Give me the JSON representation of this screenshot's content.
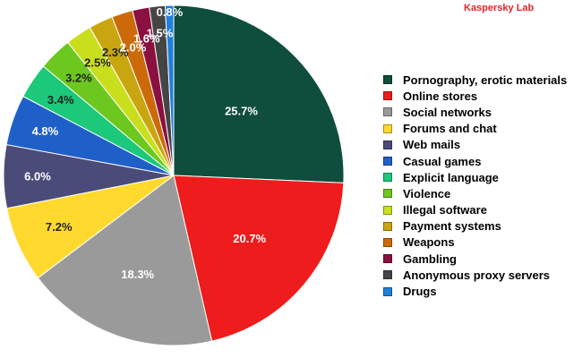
{
  "watermark": "Kaspersky Lab",
  "chart_data": {
    "type": "pie",
    "title": "",
    "legend_position": "right",
    "slices": [
      {
        "name": "Pornography, erotic materials",
        "value": 25.7,
        "label": "25.7%",
        "color": "#0f4d3c",
        "label_color": "#ffffff"
      },
      {
        "name": "Online stores",
        "value": 20.7,
        "label": "20.7%",
        "color": "#ee1c1c",
        "label_color": "#ffffff"
      },
      {
        "name": "Social networks",
        "value": 18.3,
        "label": "18.3%",
        "color": "#9a9a9a",
        "label_color": "#ffffff"
      },
      {
        "name": "Forums and chat",
        "value": 7.2,
        "label": "7.2%",
        "color": "#ffd92e",
        "label_color": "#222222"
      },
      {
        "name": "Web mails",
        "value": 6.0,
        "label": "6.0%",
        "color": "#4b4b7a",
        "label_color": "#ffffff"
      },
      {
        "name": "Casual games",
        "value": 4.8,
        "label": "4.8%",
        "color": "#1f5fc8",
        "label_color": "#ffffff"
      },
      {
        "name": "Explicit language",
        "value": 3.4,
        "label": "3.4%",
        "color": "#1cc879",
        "label_color": "#222222"
      },
      {
        "name": "Violence",
        "value": 3.2,
        "label": "3.2%",
        "color": "#6cc81e",
        "label_color": "#222222"
      },
      {
        "name": "Illegal software",
        "value": 2.5,
        "label": "2.5%",
        "color": "#c9df1e",
        "label_color": "#222222"
      },
      {
        "name": "Payment systems",
        "value": 2.3,
        "label": "2.3%",
        "color": "#c9a60f",
        "label_color": "#222222"
      },
      {
        "name": "Weapons",
        "value": 2.0,
        "label": "2.0%",
        "color": "#cc6a0a",
        "label_color": "#ffffff"
      },
      {
        "name": "Gambling",
        "value": 1.6,
        "label": "1.6%",
        "color": "#8a1040",
        "label_color": "#ffffff"
      },
      {
        "name": "Anonymous proxy servers",
        "value": 1.5,
        "label": "1.5%",
        "color": "#454545",
        "label_color": "#ffffff"
      },
      {
        "name": "Drugs",
        "value": 0.8,
        "label": "0.8%",
        "color": "#1e7fdc",
        "label_color": "#ffffff"
      }
    ]
  }
}
